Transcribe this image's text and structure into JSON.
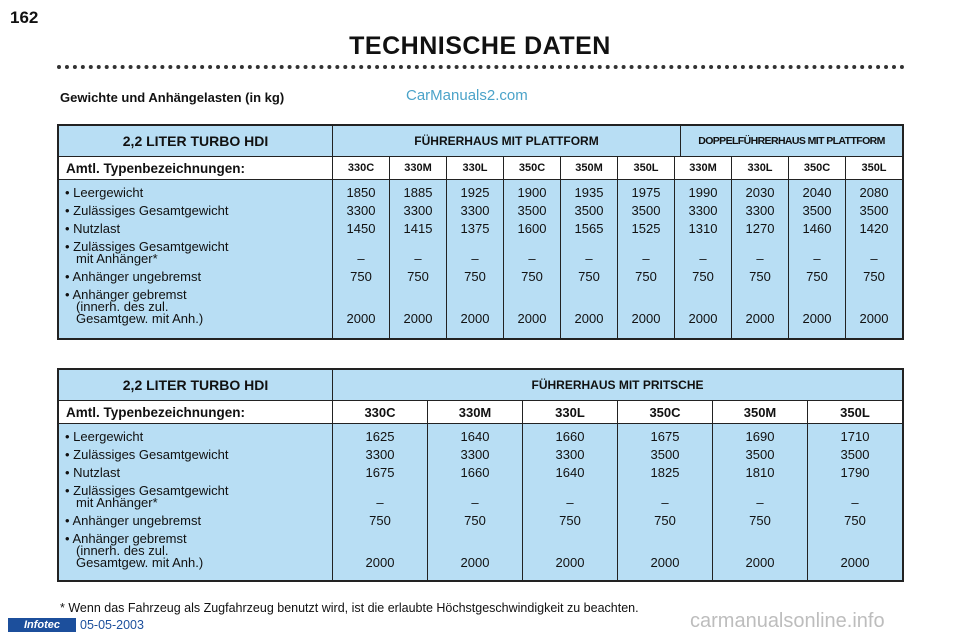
{
  "page_number": "162",
  "title": "TECHNISCHE DATEN",
  "caption": "Gewichte und Anhängelasten (in kg)",
  "watermark_top": "CarManuals2.com",
  "row_labels": [
    "• Leergewicht",
    "• Zulässiges Gesamtgewicht",
    "• Nutzlast",
    "• Zulässiges Gesamtgewicht",
    "mit Anhänger*",
    "• Anhänger ungebremst",
    "• Anhänger gebremst",
    "(innerh. des zul.",
    "Gesamtgew. mit Anh.)"
  ],
  "table1": {
    "engine": "2,2 LITER TURBO HDI",
    "group_a": "FÜHRERHAUS MIT PLATTFORM",
    "group_b": "DOPPELFÜHRERHAUS MIT PLATTFORM",
    "sub_label": "Amtl. Typenbezeichnungen:",
    "columns": [
      {
        "code": "330C",
        "values": [
          "1850",
          "3300",
          "1450",
          "–",
          "750",
          "2000"
        ]
      },
      {
        "code": "330M",
        "values": [
          "1885",
          "3300",
          "1415",
          "–",
          "750",
          "2000"
        ]
      },
      {
        "code": "330L",
        "values": [
          "1925",
          "3300",
          "1375",
          "–",
          "750",
          "2000"
        ]
      },
      {
        "code": "350C",
        "values": [
          "1900",
          "3500",
          "1600",
          "–",
          "750",
          "2000"
        ]
      },
      {
        "code": "350M",
        "values": [
          "1935",
          "3500",
          "1565",
          "–",
          "750",
          "2000"
        ]
      },
      {
        "code": "350L",
        "values": [
          "1975",
          "3500",
          "1525",
          "–",
          "750",
          "2000"
        ]
      },
      {
        "code": "330M",
        "values": [
          "1990",
          "3300",
          "1310",
          "–",
          "750",
          "2000"
        ]
      },
      {
        "code": "330L",
        "values": [
          "2030",
          "3300",
          "1270",
          "–",
          "750",
          "2000"
        ]
      },
      {
        "code": "350C",
        "values": [
          "2040",
          "3500",
          "1460",
          "–",
          "750",
          "2000"
        ]
      },
      {
        "code": "350L",
        "values": [
          "2080",
          "3500",
          "1420",
          "–",
          "750",
          "2000"
        ]
      }
    ]
  },
  "table2": {
    "engine": "2,2 LITER TURBO HDI",
    "group_a": "FÜHRERHAUS MIT PRITSCHE",
    "sub_label": "Amtl. Typenbezeichnungen:",
    "columns": [
      {
        "code": "330C",
        "values": [
          "1625",
          "3300",
          "1675",
          "–",
          "750",
          "2000"
        ]
      },
      {
        "code": "330M",
        "values": [
          "1640",
          "3300",
          "1660",
          "–",
          "750",
          "2000"
        ]
      },
      {
        "code": "330L",
        "values": [
          "1660",
          "3300",
          "1640",
          "–",
          "750",
          "2000"
        ]
      },
      {
        "code": "350C",
        "values": [
          "1675",
          "3500",
          "1825",
          "–",
          "750",
          "2000"
        ]
      },
      {
        "code": "350M",
        "values": [
          "1690",
          "3500",
          "1810",
          "–",
          "750",
          "2000"
        ]
      },
      {
        "code": "350L",
        "values": [
          "1710",
          "3500",
          "1790",
          "–",
          "750",
          "2000"
        ]
      }
    ]
  },
  "footnote": "* Wenn das Fahrzeug als Zugfahrzeug benutzt wird, ist die erlaubte Höchstgeschwindigkeit zu beachten.",
  "footer_logo": "Infotec",
  "footer_date": "05-05-2003",
  "watermark_bottom": "carmanualsonline.info"
}
